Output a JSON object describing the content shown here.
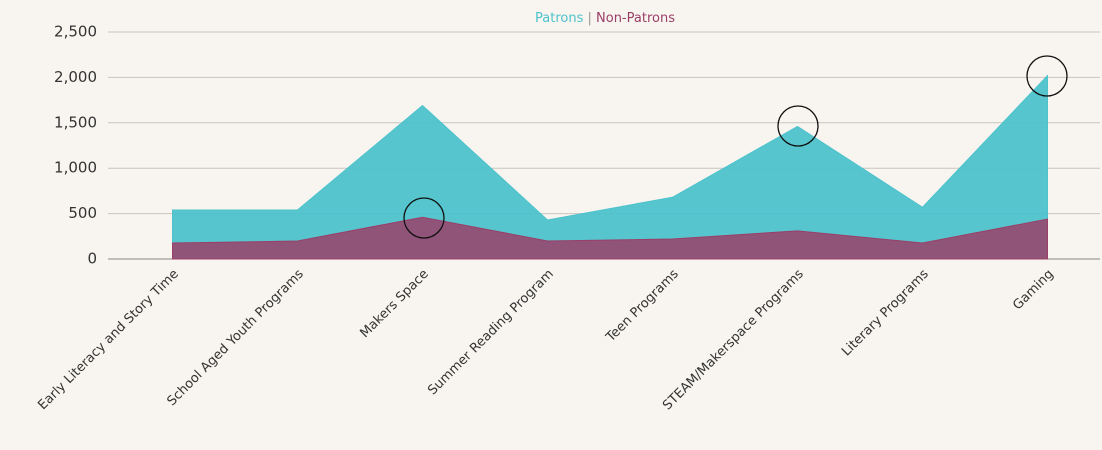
{
  "chart_data": {
    "type": "area",
    "categories": [
      "Early Literacy and Story Time",
      "School Aged Youth Programs",
      "Makers Space",
      "Summer Reading Program",
      "Teen Programs",
      "STEAM/Makerspace Programs",
      "Literary Programs",
      "Gaming"
    ],
    "series": [
      {
        "name": "Patrons",
        "color": "#4dc2cb",
        "values": [
          540,
          540,
          1690,
          430,
          680,
          1460,
          570,
          2020
        ]
      },
      {
        "name": "Non-Patrons",
        "color": "#9a3f68",
        "values": [
          176,
          198,
          460,
          198,
          220,
          310,
          176,
          440
        ]
      }
    ],
    "ylim": [
      0,
      2500
    ],
    "yticks": [
      0,
      500,
      {
        "value": 1000,
        "label": "1,000"
      },
      {
        "value": 1500,
        "label": "1,500"
      },
      {
        "value": 2000,
        "label": "2,000"
      },
      {
        "value": 2500,
        "label": "2,500"
      }
    ],
    "grid": true
  }
}
